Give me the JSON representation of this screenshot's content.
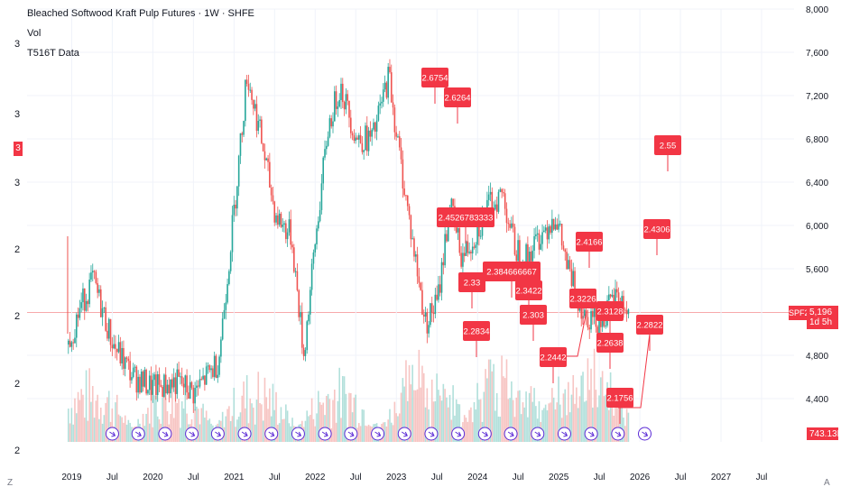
{
  "legend": {
    "title": "Bleached Softwood Kraft Pulp Futures · 1W · SHFE",
    "vol": "Vol",
    "indicator": "T516T Data"
  },
  "left_axis": {
    "ticks": [
      "3",
      "3",
      "3",
      "3",
      "2",
      "2",
      "2",
      "2",
      "2"
    ],
    "badge": "3"
  },
  "price_badges": {
    "symbol": "SPF2026",
    "price": "5,196",
    "countdown": "1d 5h",
    "volume": "743.13K"
  },
  "corners": {
    "left": "Z",
    "right": "A"
  },
  "colors": {
    "up": "#26a69a",
    "down": "#ef5350",
    "label": "#f23645",
    "grid": "#f0f3fa",
    "event": "#5b2bd6"
  },
  "chart_data": {
    "type": "line",
    "title": "Bleached Softwood Kraft Pulp Futures · 1W · SHFE",
    "y_axis": {
      "min": 4000,
      "max": 8000,
      "ticks": [
        "8,000",
        "7,600",
        "7,200",
        "6,800",
        "6,400",
        "6,000",
        "5,600",
        "5,196",
        "4,800",
        "4,400"
      ]
    },
    "x_axis": {
      "ticks": [
        "2019",
        "Jul",
        "2020",
        "Jul",
        "2021",
        "Jul",
        "2022",
        "Jul",
        "2023",
        "Jul",
        "2024",
        "Jul",
        "2025",
        "Jul",
        "2026",
        "Jul",
        "2027",
        "Jul"
      ]
    },
    "price_series": {
      "name": "Price",
      "points": [
        [
          2018.95,
          4900
        ],
        [
          2019.1,
          5250
        ],
        [
          2019.25,
          5500
        ],
        [
          2019.5,
          4900
        ],
        [
          2019.75,
          4600
        ],
        [
          2020.0,
          4500
        ],
        [
          2020.3,
          4550
        ],
        [
          2020.5,
          4450
        ],
        [
          2020.8,
          4750
        ],
        [
          2021.0,
          6200
        ],
        [
          2021.15,
          7400
        ],
        [
          2021.3,
          6900
        ],
        [
          2021.5,
          6100
        ],
        [
          2021.7,
          5900
        ],
        [
          2021.85,
          4800
        ],
        [
          2022.0,
          5900
        ],
        [
          2022.15,
          6900
        ],
        [
          2022.3,
          7300
        ],
        [
          2022.5,
          6800
        ],
        [
          2022.7,
          6800
        ],
        [
          2022.9,
          7400
        ],
        [
          2023.0,
          6800
        ],
        [
          2023.2,
          5800
        ],
        [
          2023.35,
          5100
        ],
        [
          2023.5,
          5300
        ],
        [
          2023.65,
          6200
        ],
        [
          2023.8,
          5700
        ],
        [
          2023.95,
          5900
        ],
        [
          2024.15,
          6200
        ],
        [
          2024.3,
          6300
        ],
        [
          2024.45,
          5800
        ],
        [
          2024.6,
          5700
        ],
        [
          2024.75,
          5900
        ],
        [
          2024.95,
          6100
        ],
        [
          2025.1,
          5600
        ],
        [
          2025.3,
          5200
        ],
        [
          2025.5,
          5100
        ],
        [
          2025.7,
          5350
        ],
        [
          2025.85,
          5196
        ]
      ]
    },
    "labels": [
      "2.6754",
      "2.6264",
      "2.4526783333",
      "2.384666667",
      "2.33",
      "2.2834",
      "2.3422",
      "2.303",
      "2.2442",
      "2.4166",
      "2.3226",
      "2.3128",
      "2.2638",
      "2.1756",
      "2.2822",
      "2.4306",
      "2.55"
    ],
    "volume": {
      "name": "Vol",
      "last": "743.13K"
    },
    "grid": true
  }
}
